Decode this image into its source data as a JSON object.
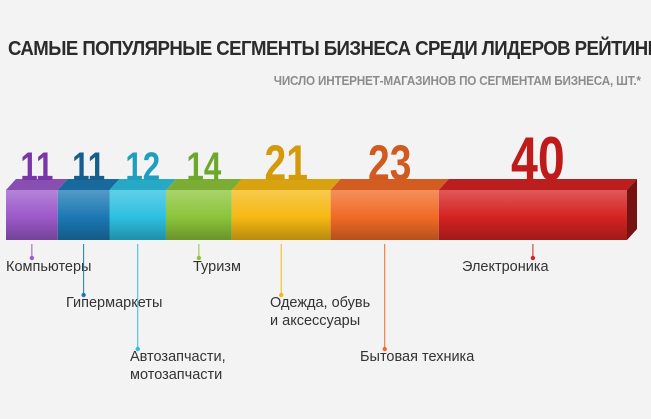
{
  "title": "САМЫЕ ПОПУЛЯРНЫЕ СЕГМЕНТЫ БИЗНЕСА СРЕДИ ЛИДЕРОВ РЕЙТИНГА",
  "subtitle": "ЧИСЛО ИНТЕРНЕТ-МАГАЗИНОВ ПО СЕГМЕНТАМ БИЗНЕСА, ШТ.*",
  "chart_data": {
    "type": "bar",
    "title": "САМЫЕ ПОПУЛЯРНЫЕ СЕГМЕНТЫ БИЗНЕСА СРЕДИ ЛИДЕРОВ РЕЙТИНГА",
    "subtitle": "ЧИСЛО ИНТЕРНЕТ-МАГАЗИНОВ ПО СЕГМЕНТАМ БИЗНЕСА, ШТ.*",
    "orientation": "stacked-horizontal-segments",
    "categories": [
      [
        "Компьютеры"
      ],
      [
        "Гипермаркеты"
      ],
      [
        "Автозапчасти,",
        "мотозапчасти"
      ],
      [
        "Туризм"
      ],
      [
        "Одежда, обувь",
        "и аксессуары"
      ],
      [
        "Бытовая техника"
      ],
      [
        "Электроника"
      ]
    ],
    "values": [
      11,
      11,
      12,
      14,
      21,
      23,
      40
    ],
    "colors": [
      "#9b59c9",
      "#1b78b3",
      "#2cbfe0",
      "#8cc43a",
      "#f5b812",
      "#f06a25",
      "#d42222"
    ],
    "value_label_colors": [
      "#7a35a8",
      "#155f8f",
      "#1f9fc0",
      "#6ea82a",
      "#d39a0a",
      "#d05a1f",
      "#c01b1b"
    ]
  }
}
